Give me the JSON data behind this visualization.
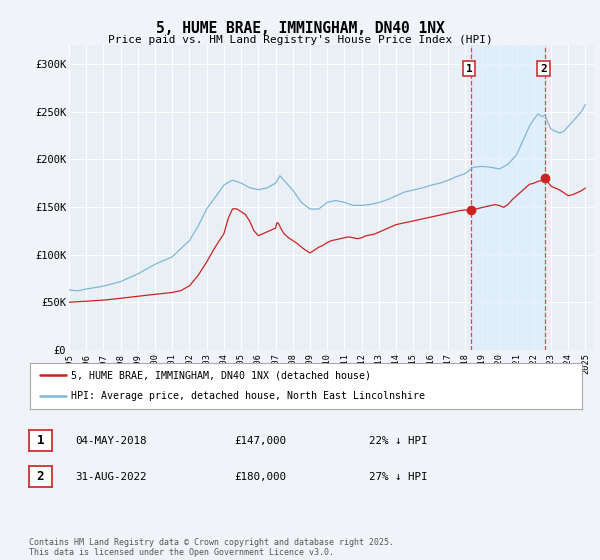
{
  "title": "5, HUME BRAE, IMMINGHAM, DN40 1NX",
  "subtitle": "Price paid vs. HM Land Registry's House Price Index (HPI)",
  "ylim": [
    0,
    320000
  ],
  "yticks": [
    0,
    50000,
    100000,
    150000,
    200000,
    250000,
    300000
  ],
  "ytick_labels": [
    "£0",
    "£50K",
    "£100K",
    "£150K",
    "£200K",
    "£250K",
    "£300K"
  ],
  "hpi_color": "#7db8d8",
  "price_color": "#cc2222",
  "vline_color": "#cc3333",
  "shade_color": "#ddeeff",
  "background_color": "#f0f4f8",
  "plot_bg_color": "#eaeff5",
  "grid_color": "#ffffff",
  "annotation1_date": "04-MAY-2018",
  "annotation1_price": "£147,000",
  "annotation1_hpi": "22% ↓ HPI",
  "annotation1_year": 2018.34,
  "annotation1_value": 147000,
  "annotation2_date": "31-AUG-2022",
  "annotation2_price": "£180,000",
  "annotation2_hpi": "27% ↓ HPI",
  "annotation2_year": 2022.66,
  "annotation2_value": 180000,
  "legend_label1": "5, HUME BRAE, IMMINGHAM, DN40 1NX (detached house)",
  "legend_label2": "HPI: Average price, detached house, North East Lincolnshire",
  "footer": "Contains HM Land Registry data © Crown copyright and database right 2025.\nThis data is licensed under the Open Government Licence v3.0."
}
